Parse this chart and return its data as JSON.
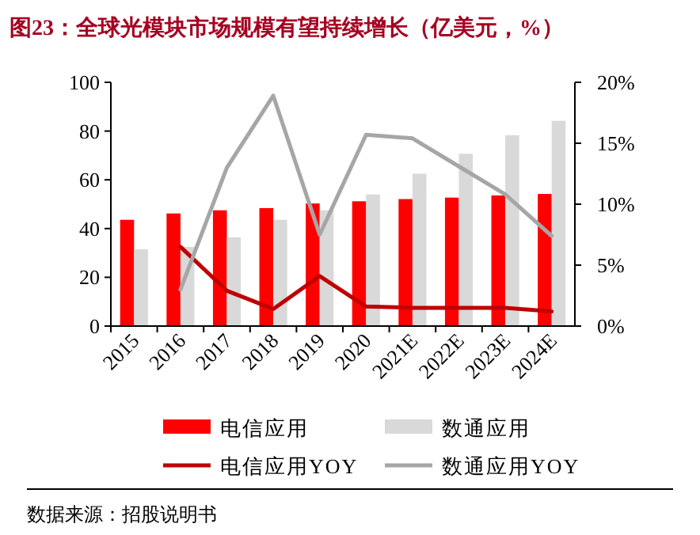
{
  "chart_data": {
    "type": "bar",
    "title": "图23：全球光模块市场规模有望持续增长（亿美元，%）",
    "categories": [
      "2015",
      "2016",
      "2017",
      "2018",
      "2019",
      "2020",
      "2021E",
      "2022E",
      "2023E",
      "2024E"
    ],
    "series": [
      {
        "name": "电信应用",
        "color": "#ff0000",
        "values": [
          43.6,
          46.2,
          47.5,
          48.4,
          50.3,
          51.2,
          52.1,
          52.7,
          53.6,
          54.2
        ]
      },
      {
        "name": "数通应用",
        "color": "#d9d9d9",
        "values": [
          31.5,
          32.5,
          36.4,
          43.6,
          47.5,
          54,
          62.5,
          70.7,
          78.3,
          84.2
        ]
      },
      {
        "name": "电信应用YOY",
        "type": "line",
        "axis": "y2",
        "color": "#c00000",
        "values": [
          null,
          6.5,
          2.9,
          1.4,
          4.1,
          1.6,
          1.5,
          1.5,
          1.5,
          1.2
        ]
      },
      {
        "name": "数通应用YOY",
        "type": "line",
        "axis": "y2",
        "color": "#a6a6a6",
        "values": [
          null,
          3.0,
          13.0,
          18.9,
          7.5,
          15.7,
          15.4,
          13.1,
          10.8,
          7.4
        ]
      }
    ],
    "ylim": [
      0,
      100
    ],
    "yticks": [
      0,
      20,
      40,
      60,
      80,
      100
    ],
    "y2lim": [
      0,
      20
    ],
    "y2ticks": [
      {
        "value": 0,
        "label": "0%"
      },
      {
        "value": 5,
        "label": "5%"
      },
      {
        "value": 10,
        "label": "10%"
      },
      {
        "value": 15,
        "label": "15%"
      },
      {
        "value": 20,
        "label": "20%"
      }
    ],
    "legend": "bottom",
    "marker": "none",
    "line_style": "solid",
    "annotations": [
      "数据来源：招股说明书"
    ]
  }
}
